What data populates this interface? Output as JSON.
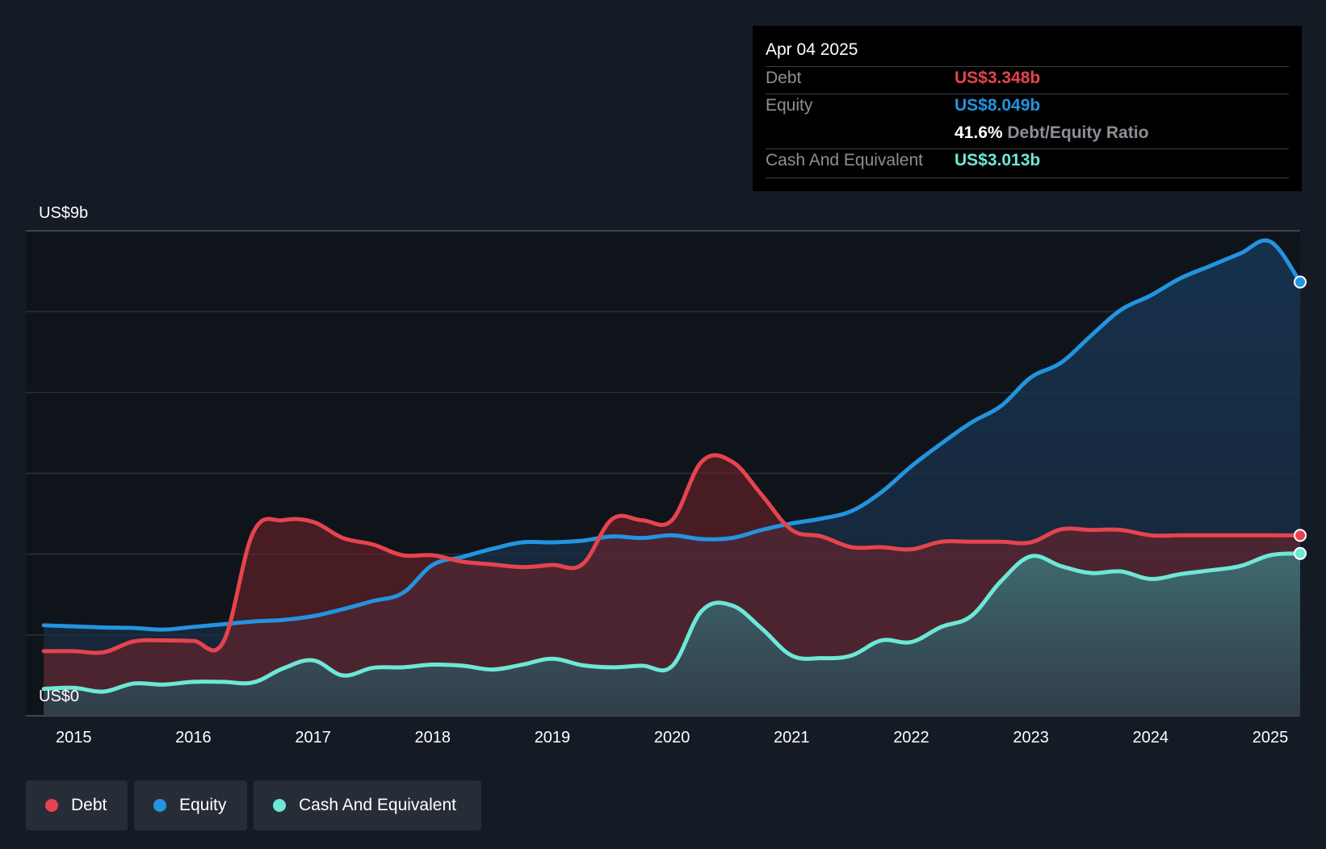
{
  "chart_data": {
    "type": "area",
    "y_axis": {
      "top_label": "US$9b",
      "bottom_label": "US$0",
      "ylim": [
        0,
        9
      ],
      "unit": "US$ billions"
    },
    "x_ticks": [
      "2015",
      "2016",
      "2017",
      "2018",
      "2019",
      "2020",
      "2021",
      "2022",
      "2023",
      "2024",
      "2025"
    ],
    "xlim": [
      2014.6,
      2025.25
    ],
    "series": [
      {
        "name": "Debt",
        "color": "#e5444e",
        "points": [
          [
            2014.75,
            1.2
          ],
          [
            2015.0,
            1.2
          ],
          [
            2015.25,
            1.18
          ],
          [
            2015.5,
            1.38
          ],
          [
            2015.75,
            1.4
          ],
          [
            2016.0,
            1.39
          ],
          [
            2016.25,
            1.37
          ],
          [
            2016.5,
            3.4
          ],
          [
            2016.75,
            3.63
          ],
          [
            2017.0,
            3.6
          ],
          [
            2017.25,
            3.3
          ],
          [
            2017.5,
            3.18
          ],
          [
            2017.75,
            2.98
          ],
          [
            2018.0,
            2.98
          ],
          [
            2018.25,
            2.86
          ],
          [
            2018.5,
            2.81
          ],
          [
            2018.75,
            2.76
          ],
          [
            2019.0,
            2.8
          ],
          [
            2019.25,
            2.81
          ],
          [
            2019.5,
            3.65
          ],
          [
            2019.75,
            3.63
          ],
          [
            2020.0,
            3.63
          ],
          [
            2020.25,
            4.72
          ],
          [
            2020.5,
            4.72
          ],
          [
            2020.75,
            4.1
          ],
          [
            2021.0,
            3.45
          ],
          [
            2021.25,
            3.33
          ],
          [
            2021.5,
            3.13
          ],
          [
            2021.75,
            3.13
          ],
          [
            2022.0,
            3.09
          ],
          [
            2022.25,
            3.23
          ],
          [
            2022.5,
            3.23
          ],
          [
            2022.75,
            3.23
          ],
          [
            2023.0,
            3.22
          ],
          [
            2023.25,
            3.46
          ],
          [
            2023.5,
            3.45
          ],
          [
            2023.75,
            3.45
          ],
          [
            2024.0,
            3.35
          ],
          [
            2024.25,
            3.35
          ],
          [
            2024.5,
            3.35
          ],
          [
            2024.75,
            3.35
          ],
          [
            2025.0,
            3.35
          ],
          [
            2025.25,
            3.348
          ]
        ]
      },
      {
        "name": "Equity",
        "color": "#2394df",
        "points": [
          [
            2014.75,
            1.68
          ],
          [
            2015.0,
            1.66
          ],
          [
            2015.25,
            1.64
          ],
          [
            2015.5,
            1.63
          ],
          [
            2015.75,
            1.6
          ],
          [
            2016.0,
            1.65
          ],
          [
            2016.25,
            1.7
          ],
          [
            2016.5,
            1.75
          ],
          [
            2016.75,
            1.78
          ],
          [
            2017.0,
            1.85
          ],
          [
            2017.25,
            1.98
          ],
          [
            2017.5,
            2.13
          ],
          [
            2017.75,
            2.28
          ],
          [
            2018.0,
            2.8
          ],
          [
            2018.25,
            2.95
          ],
          [
            2018.5,
            3.1
          ],
          [
            2018.75,
            3.22
          ],
          [
            2019.0,
            3.22
          ],
          [
            2019.25,
            3.25
          ],
          [
            2019.5,
            3.33
          ],
          [
            2019.75,
            3.3
          ],
          [
            2020.0,
            3.35
          ],
          [
            2020.25,
            3.28
          ],
          [
            2020.5,
            3.3
          ],
          [
            2020.75,
            3.45
          ],
          [
            2021.0,
            3.57
          ],
          [
            2021.25,
            3.66
          ],
          [
            2021.5,
            3.8
          ],
          [
            2021.75,
            4.15
          ],
          [
            2022.0,
            4.63
          ],
          [
            2022.25,
            5.05
          ],
          [
            2022.5,
            5.44
          ],
          [
            2022.75,
            5.75
          ],
          [
            2023.0,
            6.28
          ],
          [
            2023.25,
            6.55
          ],
          [
            2023.5,
            7.05
          ],
          [
            2023.75,
            7.53
          ],
          [
            2024.0,
            7.8
          ],
          [
            2024.25,
            8.12
          ],
          [
            2024.5,
            8.35
          ],
          [
            2024.75,
            8.58
          ],
          [
            2025.0,
            8.8
          ],
          [
            2025.25,
            8.049
          ]
        ]
      },
      {
        "name": "Cash And Equivalent",
        "color": "#6ee8d5",
        "points": [
          [
            2014.75,
            0.5
          ],
          [
            2015.0,
            0.52
          ],
          [
            2015.25,
            0.45
          ],
          [
            2015.5,
            0.6
          ],
          [
            2015.75,
            0.58
          ],
          [
            2016.0,
            0.63
          ],
          [
            2016.25,
            0.63
          ],
          [
            2016.5,
            0.62
          ],
          [
            2016.75,
            0.88
          ],
          [
            2017.0,
            1.03
          ],
          [
            2017.25,
            0.75
          ],
          [
            2017.5,
            0.89
          ],
          [
            2017.75,
            0.9
          ],
          [
            2018.0,
            0.95
          ],
          [
            2018.25,
            0.93
          ],
          [
            2018.5,
            0.86
          ],
          [
            2018.75,
            0.95
          ],
          [
            2019.0,
            1.06
          ],
          [
            2019.25,
            0.94
          ],
          [
            2019.5,
            0.9
          ],
          [
            2019.75,
            0.93
          ],
          [
            2020.0,
            0.92
          ],
          [
            2020.25,
            1.95
          ],
          [
            2020.5,
            2.05
          ],
          [
            2020.75,
            1.62
          ],
          [
            2021.0,
            1.12
          ],
          [
            2021.25,
            1.07
          ],
          [
            2021.5,
            1.12
          ],
          [
            2021.75,
            1.4
          ],
          [
            2022.0,
            1.37
          ],
          [
            2022.25,
            1.65
          ],
          [
            2022.5,
            1.85
          ],
          [
            2022.75,
            2.5
          ],
          [
            2023.0,
            2.96
          ],
          [
            2023.25,
            2.78
          ],
          [
            2023.5,
            2.65
          ],
          [
            2023.75,
            2.68
          ],
          [
            2024.0,
            2.54
          ],
          [
            2024.25,
            2.63
          ],
          [
            2024.5,
            2.7
          ],
          [
            2024.75,
            2.78
          ],
          [
            2025.0,
            2.98
          ],
          [
            2025.25,
            3.013
          ]
        ]
      }
    ],
    "gridlines": true,
    "legend_position": "bottom-left"
  },
  "tooltip": {
    "date": "Apr 04 2025",
    "rows": [
      {
        "label": "Debt",
        "value": "US$3.348b",
        "color": "#e5444e"
      },
      {
        "label": "Equity",
        "value": "US$8.049b",
        "color": "#2394df"
      },
      {
        "label": "Cash And Equivalent",
        "value": "US$3.013b",
        "color": "#6ee8d5"
      }
    ],
    "ratio_value": "41.6%",
    "ratio_label": "Debt/Equity Ratio"
  },
  "legend": [
    {
      "label": "Debt",
      "color": "#e5444e"
    },
    {
      "label": "Equity",
      "color": "#2394df"
    },
    {
      "label": "Cash And Equivalent",
      "color": "#6ee8d5"
    }
  ]
}
